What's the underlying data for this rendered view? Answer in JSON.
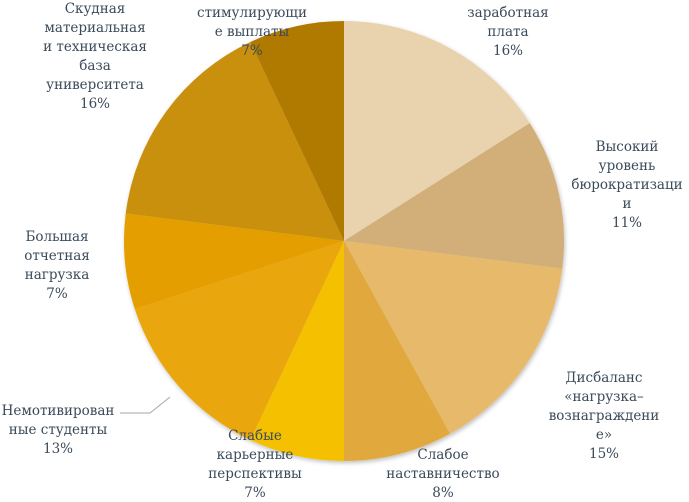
{
  "chart_data": {
    "type": "pie",
    "title": "",
    "slices": [
      {
        "lines": [
          "заработная",
          "плата"
        ],
        "value": 16,
        "pct": "16%",
        "color": "#e9d3ae"
      },
      {
        "lines": [
          "Высокий",
          "уровень",
          "бюрократизаци",
          "и"
        ],
        "value": 11,
        "pct": "11%",
        "color": "#d2ae78"
      },
      {
        "lines": [
          "Дисбаланс",
          "«нагрузка–",
          "вознаграждени",
          "е»"
        ],
        "value": 15,
        "pct": "15%",
        "color": "#e7b96a"
      },
      {
        "lines": [
          "Слабое",
          "наставничество"
        ],
        "value": 8,
        "pct": "8%",
        "color": "#e1a83d"
      },
      {
        "lines": [
          "Слабые",
          "карьерные",
          "перспективы"
        ],
        "value": 7,
        "pct": "7%",
        "color": "#f4c000"
      },
      {
        "lines": [
          "Немотивирован",
          "ные студенты"
        ],
        "value": 13,
        "pct": "13%",
        "color": "#eaa60e"
      },
      {
        "lines": [
          "Большая",
          "отчетная",
          "нагрузка"
        ],
        "value": 7,
        "pct": "7%",
        "color": "#e49e00"
      },
      {
        "lines": [
          "Скудная",
          "материальная",
          "и техническая",
          "база",
          "университета"
        ],
        "value": 16,
        "pct": "16%",
        "color": "#c8900d"
      },
      {
        "lines": [
          "стимулирующи",
          "е выплаты"
        ],
        "value": 7,
        "pct": "7%",
        "color": "#b07a00"
      }
    ]
  }
}
